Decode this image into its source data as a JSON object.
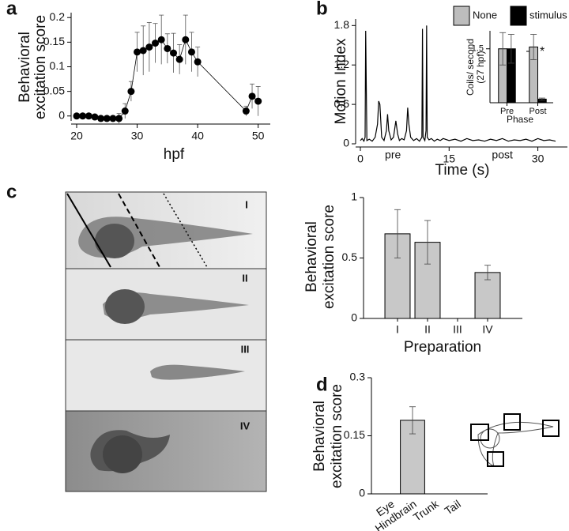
{
  "chart_data": [
    {
      "type": "line",
      "panel": "a",
      "xlabel": "hpf",
      "ylabel": [
        "Behavioral",
        "excitation score"
      ],
      "x": [
        20,
        21,
        22,
        23,
        24,
        25,
        26,
        27,
        28,
        29,
        30,
        31,
        32,
        33,
        34,
        35,
        36,
        37,
        38,
        39,
        40,
        48,
        49,
        50
      ],
      "series": [
        {
          "color": "#000000",
          "values": [
            0,
            0,
            0,
            -0.002,
            -0.005,
            -0.005,
            -0.005,
            -0.005,
            0.01,
            0.05,
            0.13,
            0.133,
            0.14,
            0.148,
            0.155,
            0.137,
            0.128,
            0.115,
            0.155,
            0.13,
            0.11,
            0.01,
            0.04,
            0.03
          ],
          "errors": [
            0.002,
            0.002,
            0.002,
            0.003,
            0.003,
            0.005,
            0.005,
            0.01,
            0.015,
            0.02,
            0.04,
            0.05,
            0.05,
            0.04,
            0.05,
            0.03,
            0.04,
            0.03,
            0.05,
            0.04,
            0.03,
            0.01,
            0.025,
            0.03
          ]
        }
      ],
      "markers": true,
      "xlim": [
        20,
        52
      ],
      "xticks": [
        20,
        30,
        40,
        50
      ],
      "ylim": [
        -0.01,
        0.21
      ],
      "yticks": [
        0,
        0.05,
        0.1,
        0.15,
        0.2
      ]
    },
    {
      "type": "line",
      "panel": "b",
      "xlabel": "Time (s)",
      "ylabel": [
        "Motion Index"
      ],
      "x": [
        0,
        0.3,
        0.6,
        0.8,
        0.9,
        1.1,
        1.5,
        2,
        2.5,
        2.9,
        3.1,
        3.3,
        3.6,
        4,
        4.4,
        4.6,
        4.8,
        5.2,
        5.6,
        6,
        6.3,
        6.6,
        7,
        7.4,
        7.8,
        8,
        8.2,
        8.5,
        9,
        9.5,
        10,
        10.4,
        10.5,
        10.6,
        10.9,
        11.1,
        11.2,
        11.3,
        11.6,
        12,
        12.5,
        13,
        13.5,
        14,
        15,
        16,
        17,
        18,
        19,
        20,
        21,
        22,
        23,
        24,
        25,
        26,
        27,
        28,
        29,
        30,
        31,
        32,
        33
      ],
      "series": [
        {
          "color": "#000000",
          "values": [
            0.05,
            0.08,
            0.04,
            0.1,
            1.72,
            0.05,
            0.07,
            0.04,
            0.1,
            0.3,
            0.65,
            0.6,
            0.1,
            0.05,
            0.2,
            0.45,
            0.2,
            0.06,
            0.1,
            0.35,
            0.15,
            0.05,
            0.08,
            0.06,
            0.2,
            0.55,
            0.3,
            0.1,
            0.05,
            0.08,
            0.04,
            0.1,
            1.75,
            0.1,
            0.05,
            0.2,
            1.8,
            0.1,
            0.06,
            0.08,
            0.04,
            0.07,
            0.05,
            0.08,
            0.05,
            0.07,
            0.04,
            0.08,
            0.05,
            0.06,
            0.04,
            0.07,
            0.05,
            0.08,
            0.04,
            0.06,
            0.05,
            0.07,
            0.04,
            0.08,
            0.05,
            0.06,
            0.04
          ]
        }
      ],
      "markers": false,
      "xlim": [
        0,
        35
      ],
      "xticks": [
        0,
        15,
        30
      ],
      "ylim": [
        0,
        1.9
      ],
      "yticks": [
        0,
        0.6,
        1.2,
        1.8
      ],
      "annotations": [
        {
          "text": "pre",
          "x": 5.5
        },
        {
          "text": "post",
          "x": 24
        }
      ]
    },
    {
      "type": "bar",
      "xlabel": "Phase",
      "ylabel": [
        "Coils/ second",
        "(27 hpf)"
      ],
      "categories": [
        "Pre",
        "Post"
      ],
      "series": [
        {
          "name": "None",
          "color": "#bdbdbd",
          "values": [
            1.5,
            1.55
          ],
          "errors": [
            0.45,
            0.35
          ]
        },
        {
          "name": "stimulus",
          "color": "#000000",
          "values": [
            1.5,
            0.1
          ],
          "errors": [
            0.4,
            0.03
          ]
        }
      ],
      "ylim": [
        0,
        2
      ],
      "yticks": [
        1.5
      ],
      "annotation": "*",
      "legend": "top"
    },
    {
      "type": "bar",
      "panel": "c",
      "xlabel": "Preparation",
      "ylabel": [
        "Behavioral",
        "excitation score"
      ],
      "categories": [
        "I",
        "II",
        "III",
        "IV"
      ],
      "image_labels": [
        "I",
        "II",
        "III",
        "IV"
      ],
      "series": [
        {
          "color": "#c8c8c8",
          "values": [
            0.7,
            0.63,
            0,
            0.38
          ],
          "errors": [
            0.2,
            0.18,
            0,
            0.06
          ]
        }
      ],
      "ylim": [
        0,
        1
      ],
      "yticks": [
        0,
        0.5,
        1
      ]
    },
    {
      "type": "bar",
      "panel": "d",
      "ylabel": [
        "Behavioral",
        "excitation score"
      ],
      "categories": [
        "Eye",
        "Hindbrain",
        "Trunk",
        "Tail"
      ],
      "series": [
        {
          "color": "#c8c8c8",
          "values": [
            0,
            0.19,
            0,
            0
          ],
          "errors": [
            0,
            0.035,
            0,
            0
          ]
        }
      ],
      "ylim": [
        0,
        0.3
      ],
      "yticks": [
        0,
        0.15,
        0.3
      ]
    }
  ]
}
